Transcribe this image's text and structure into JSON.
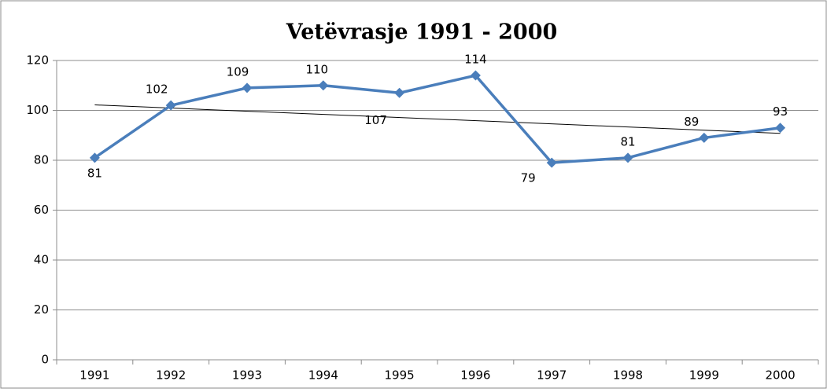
{
  "chart_data": {
    "type": "line",
    "title": "Vetëvrasje 1991 - 2000",
    "categories": [
      "1991",
      "1992",
      "1993",
      "1994",
      "1995",
      "1996",
      "1997",
      "1998",
      "1999",
      "2000"
    ],
    "series": [
      {
        "name": "Vetëvrasje",
        "color": "#4a7ebb",
        "values": [
          81,
          102,
          109,
          110,
          107,
          114,
          79,
          81,
          89,
          93
        ]
      }
    ],
    "ylim": [
      0,
      120
    ],
    "yticks": [
      0,
      20,
      40,
      60,
      80,
      100,
      120
    ],
    "grid": true,
    "trendline": true,
    "legend": false
  }
}
